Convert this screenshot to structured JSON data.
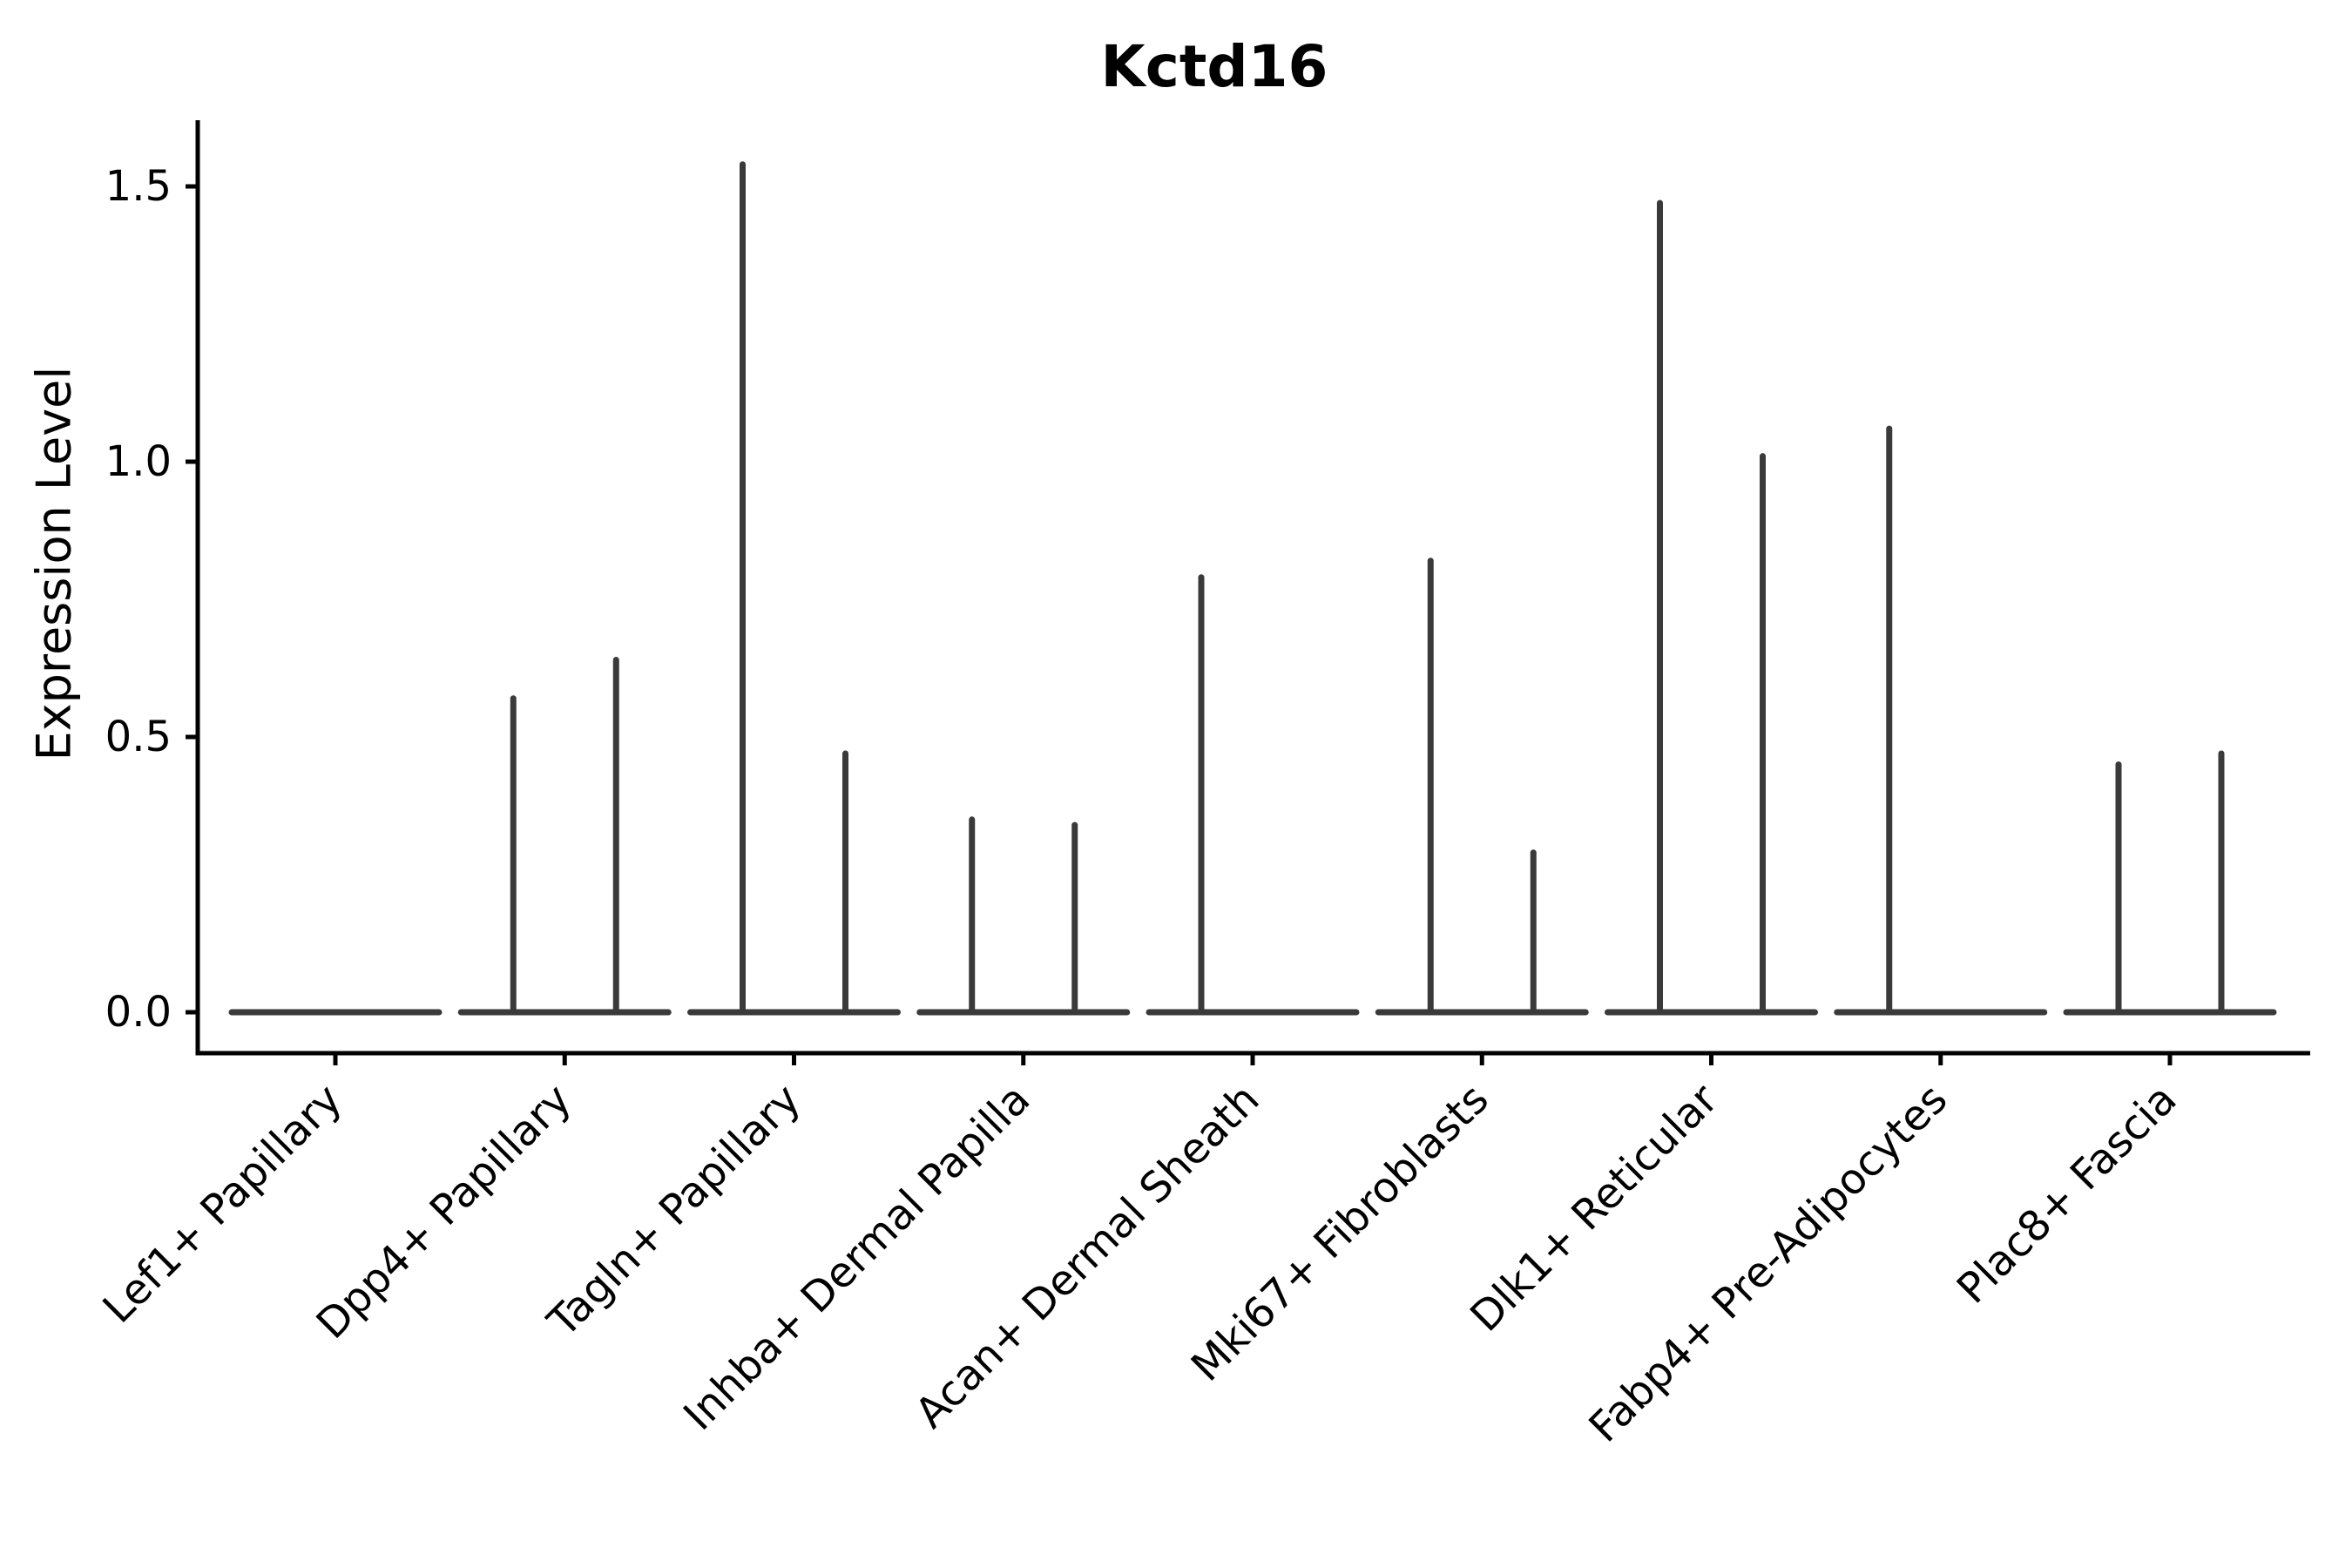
{
  "figure": {
    "title": "Kctd16",
    "y_axis_title": "Expression Level"
  },
  "chart_data": {
    "type": "violin",
    "title": "Kctd16",
    "xlabel": "",
    "ylabel": "Expression Level",
    "ylim": [
      -0.075,
      1.62
    ],
    "yticks": [
      0.0,
      0.5,
      1.0,
      1.5
    ],
    "ytick_labels": [
      "0.0",
      "0.5",
      "1.0",
      "1.5"
    ],
    "grid": false,
    "legend": "none",
    "categories": [
      "Lef1+ Papillary",
      "Dpp4+ Papillary",
      "Tagln+ Papillary",
      "Inhba+ Dermal Papilla",
      "Acan+ Dermal Sheath",
      "Mki67+ Fibroblasts",
      "Dlk1+ Reticular",
      "Fabp4+ Pre-Adipocytes",
      "Plac8+ Fascia"
    ],
    "series_note": "Each category shows two collapsed violins (baseline at 0 with a thin spike to the max expression); null means no spike, violin is flat at 0",
    "series": [
      {
        "name": "left-violin-max",
        "values": [
          null,
          0.57,
          1.54,
          0.35,
          0.79,
          0.82,
          1.47,
          1.06,
          0.45
        ]
      },
      {
        "name": "right-violin-max",
        "values": [
          null,
          0.64,
          0.47,
          0.34,
          null,
          0.29,
          1.01,
          null,
          0.47
        ]
      }
    ],
    "baseline_value": 0.0,
    "colors": {
      "violin_stroke": "#3a3a3a",
      "axis": "#000000",
      "background": "#ffffff"
    }
  }
}
